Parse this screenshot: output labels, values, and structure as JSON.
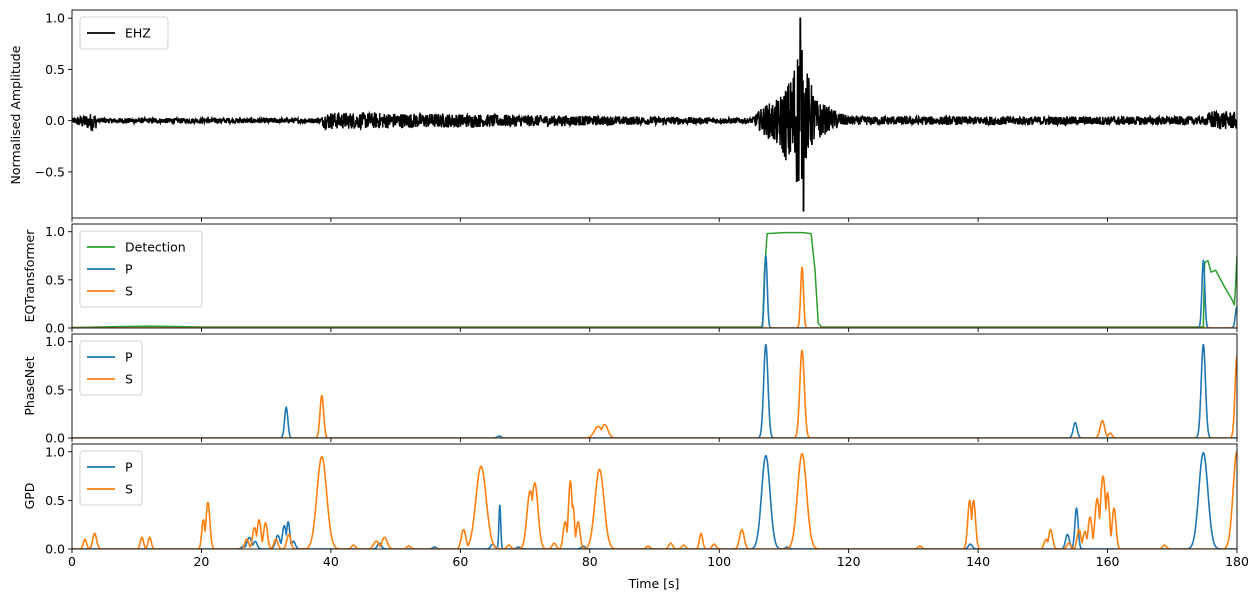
{
  "chart_data": [
    {
      "type": "line",
      "panel": "waveform",
      "ylabel": "Normalised Amplitude",
      "xlim": [
        0,
        180
      ],
      "ylim": [
        -0.95,
        1.08
      ],
      "yticks": [
        -0.5,
        0.0,
        0.5,
        1.0
      ],
      "ytick_labels": [
        "−0.5",
        "0.0",
        "0.5",
        "1.0"
      ],
      "legend": {
        "position": "top-left",
        "entries": [
          "EHZ"
        ]
      },
      "series": [
        {
          "name": "EHZ",
          "color": "#000000",
          "envelope": {
            "t": [
              0,
              3.5,
              4,
              38.5,
              39,
              105,
              107,
              109,
              111,
              112.5,
              113,
              113.8,
              115,
              117,
              120,
              175,
              176,
              180
            ],
            "upper": [
              0.03,
              0.1,
              0.03,
              0.03,
              0.1,
              0.03,
              0.18,
              0.25,
              0.5,
              1.0,
              0.7,
              0.52,
              0.25,
              0.15,
              0.05,
              0.05,
              0.12,
              0.1
            ],
            "lower": [
              -0.03,
              -0.13,
              -0.03,
              -0.03,
              -0.1,
              -0.03,
              -0.17,
              -0.3,
              -0.55,
              -0.88,
              -0.6,
              -0.4,
              -0.25,
              -0.12,
              -0.05,
              -0.05,
              -0.1,
              -0.1
            ]
          }
        }
      ]
    },
    {
      "type": "line",
      "panel": "eqtransformer",
      "ylabel": "EQTransformer",
      "xlim": [
        0,
        180
      ],
      "ylim": [
        0,
        1.08
      ],
      "yticks": [
        0.0,
        0.5,
        1.0
      ],
      "ytick_labels": [
        "0.0",
        "0.5",
        "1.0"
      ],
      "legend": {
        "position": "top-left",
        "entries": [
          "Detection",
          "P",
          "S"
        ]
      },
      "series": [
        {
          "name": "Detection",
          "color": "#2ca02c",
          "points": [
            [
              0,
              0.005
            ],
            [
              8,
              0.015
            ],
            [
              12,
              0.02
            ],
            [
              20,
              0.01
            ],
            [
              106.7,
              0.01
            ],
            [
              107.0,
              0.6
            ],
            [
              107.4,
              0.98
            ],
            [
              110,
              0.99
            ],
            [
              113,
              0.99
            ],
            [
              114.2,
              0.98
            ],
            [
              114.8,
              0.6
            ],
            [
              115.3,
              0.05
            ],
            [
              115.8,
              0.01
            ],
            [
              174.8,
              0.01
            ],
            [
              175.0,
              0.68
            ],
            [
              175.5,
              0.7
            ],
            [
              176,
              0.58
            ],
            [
              176.7,
              0.6
            ],
            [
              177.5,
              0.5
            ],
            [
              178.3,
              0.4
            ],
            [
              179.2,
              0.3
            ],
            [
              179.6,
              0.24
            ],
            [
              179.75,
              0.4
            ],
            [
              180,
              0.75
            ]
          ]
        },
        {
          "name": "P",
          "color": "#1f77b4",
          "peaks": [
            {
              "t": 107.2,
              "h": 0.75,
              "w": 0.22
            },
            {
              "t": 174.8,
              "h": 0.7,
              "w": 0.22
            },
            {
              "t": 180.0,
              "h": 0.22,
              "w": 0.25
            }
          ]
        },
        {
          "name": "S",
          "color": "#ff7f0e",
          "peaks": [
            {
              "t": 112.8,
              "h": 0.63,
              "w": 0.22
            }
          ]
        }
      ]
    },
    {
      "type": "line",
      "panel": "phasenet",
      "ylabel": "PhaseNet",
      "xlim": [
        0,
        180
      ],
      "ylim": [
        0,
        1.08
      ],
      "yticks": [
        0.0,
        0.5,
        1.0
      ],
      "ytick_labels": [
        "0.0",
        "0.5",
        "1.0"
      ],
      "legend": {
        "position": "top-left",
        "entries": [
          "P",
          "S"
        ]
      },
      "series": [
        {
          "name": "P",
          "color": "#1f77b4",
          "peaks": [
            {
              "t": 33.1,
              "h": 0.32,
              "w": 0.25
            },
            {
              "t": 66.0,
              "h": 0.02,
              "w": 0.3
            },
            {
              "t": 107.2,
              "h": 0.97,
              "w": 0.33
            },
            {
              "t": 155.0,
              "h": 0.16,
              "w": 0.3
            },
            {
              "t": 174.8,
              "h": 0.97,
              "w": 0.33
            }
          ]
        },
        {
          "name": "S",
          "color": "#ff7f0e",
          "peaks": [
            {
              "t": 38.6,
              "h": 0.44,
              "w": 0.28
            },
            {
              "t": 81.3,
              "h": 0.12,
              "w": 0.6
            },
            {
              "t": 82.3,
              "h": 0.14,
              "w": 0.5
            },
            {
              "t": 112.8,
              "h": 0.91,
              "w": 0.35
            },
            {
              "t": 159.2,
              "h": 0.18,
              "w": 0.35
            },
            {
              "t": 160.4,
              "h": 0.05,
              "w": 0.3
            },
            {
              "t": 180.0,
              "h": 0.85,
              "w": 0.3
            }
          ]
        }
      ]
    },
    {
      "type": "line",
      "panel": "gpd",
      "ylabel": "GPD",
      "xlabel": "Time [s]",
      "xlim": [
        0,
        180
      ],
      "ylim": [
        0,
        1.08
      ],
      "xticks": [
        0,
        20,
        40,
        60,
        80,
        100,
        120,
        140,
        160,
        180
      ],
      "xtick_labels": [
        "0",
        "20",
        "40",
        "60",
        "80",
        "100",
        "120",
        "140",
        "160",
        "180"
      ],
      "yticks": [
        0.0,
        0.5,
        1.0
      ],
      "ytick_labels": [
        "0.0",
        "0.5",
        "1.0"
      ],
      "legend": {
        "position": "top-left",
        "entries": [
          "P",
          "S"
        ]
      },
      "series": [
        {
          "name": "P",
          "color": "#1f77b4",
          "peaks": [
            {
              "t": 26.5,
              "h": 0.03,
              "w": 0.3
            },
            {
              "t": 27.4,
              "h": 0.12,
              "w": 0.35
            },
            {
              "t": 28.3,
              "h": 0.08,
              "w": 0.3
            },
            {
              "t": 31.8,
              "h": 0.14,
              "w": 0.35
            },
            {
              "t": 32.8,
              "h": 0.24,
              "w": 0.3
            },
            {
              "t": 33.4,
              "h": 0.28,
              "w": 0.25
            },
            {
              "t": 34.2,
              "h": 0.08,
              "w": 0.3
            },
            {
              "t": 47.5,
              "h": 0.06,
              "w": 0.3
            },
            {
              "t": 56.0,
              "h": 0.02,
              "w": 0.3
            },
            {
              "t": 65.0,
              "h": 0.05,
              "w": 0.3
            },
            {
              "t": 66.1,
              "h": 0.45,
              "w": 0.14
            },
            {
              "t": 69.0,
              "h": 0.02,
              "w": 0.3
            },
            {
              "t": 79.0,
              "h": 0.03,
              "w": 0.3
            },
            {
              "t": 107.2,
              "h": 0.96,
              "w": 0.65
            },
            {
              "t": 110.5,
              "h": 0.02,
              "w": 0.3
            },
            {
              "t": 138.8,
              "h": 0.05,
              "w": 0.3
            },
            {
              "t": 153.8,
              "h": 0.15,
              "w": 0.3
            },
            {
              "t": 155.2,
              "h": 0.42,
              "w": 0.25
            },
            {
              "t": 174.8,
              "h": 0.99,
              "w": 0.7
            }
          ]
        },
        {
          "name": "S",
          "color": "#ff7f0e",
          "peaks": [
            {
              "t": 2.0,
              "h": 0.1,
              "w": 0.25
            },
            {
              "t": 3.5,
              "h": 0.16,
              "w": 0.3
            },
            {
              "t": 10.8,
              "h": 0.12,
              "w": 0.25
            },
            {
              "t": 12.0,
              "h": 0.12,
              "w": 0.25
            },
            {
              "t": 20.3,
              "h": 0.3,
              "w": 0.25
            },
            {
              "t": 21.0,
              "h": 0.48,
              "w": 0.3
            },
            {
              "t": 27.0,
              "h": 0.1,
              "w": 0.3
            },
            {
              "t": 28.2,
              "h": 0.22,
              "w": 0.3
            },
            {
              "t": 28.9,
              "h": 0.3,
              "w": 0.3
            },
            {
              "t": 29.9,
              "h": 0.27,
              "w": 0.3
            },
            {
              "t": 31.5,
              "h": 0.1,
              "w": 0.3
            },
            {
              "t": 33.5,
              "h": 0.15,
              "w": 0.3
            },
            {
              "t": 38.6,
              "h": 0.95,
              "w": 0.75
            },
            {
              "t": 43.5,
              "h": 0.04,
              "w": 0.3
            },
            {
              "t": 47.0,
              "h": 0.08,
              "w": 0.4
            },
            {
              "t": 48.3,
              "h": 0.12,
              "w": 0.4
            },
            {
              "t": 52.0,
              "h": 0.03,
              "w": 0.3
            },
            {
              "t": 60.5,
              "h": 0.2,
              "w": 0.35
            },
            {
              "t": 63.2,
              "h": 0.85,
              "w": 0.8
            },
            {
              "t": 67.5,
              "h": 0.04,
              "w": 0.3
            },
            {
              "t": 70.8,
              "h": 0.6,
              "w": 0.5
            },
            {
              "t": 71.5,
              "h": 0.68,
              "w": 0.5
            },
            {
              "t": 74.5,
              "h": 0.06,
              "w": 0.3
            },
            {
              "t": 76.2,
              "h": 0.28,
              "w": 0.3
            },
            {
              "t": 77.0,
              "h": 0.7,
              "w": 0.3
            },
            {
              "t": 77.4,
              "h": 0.45,
              "w": 0.25
            },
            {
              "t": 78.2,
              "h": 0.28,
              "w": 0.3
            },
            {
              "t": 81.5,
              "h": 0.82,
              "w": 0.7
            },
            {
              "t": 89.0,
              "h": 0.03,
              "w": 0.3
            },
            {
              "t": 92.5,
              "h": 0.06,
              "w": 0.3
            },
            {
              "t": 94.5,
              "h": 0.04,
              "w": 0.3
            },
            {
              "t": 97.2,
              "h": 0.16,
              "w": 0.25
            },
            {
              "t": 99.2,
              "h": 0.05,
              "w": 0.3
            },
            {
              "t": 103.5,
              "h": 0.2,
              "w": 0.35
            },
            {
              "t": 112.8,
              "h": 0.98,
              "w": 0.7
            },
            {
              "t": 131.0,
              "h": 0.03,
              "w": 0.3
            },
            {
              "t": 138.7,
              "h": 0.5,
              "w": 0.3
            },
            {
              "t": 139.3,
              "h": 0.5,
              "w": 0.3
            },
            {
              "t": 150.5,
              "h": 0.1,
              "w": 0.3
            },
            {
              "t": 151.2,
              "h": 0.2,
              "w": 0.3
            },
            {
              "t": 154.0,
              "h": 0.06,
              "w": 0.3
            },
            {
              "t": 155.6,
              "h": 0.2,
              "w": 0.3
            },
            {
              "t": 156.5,
              "h": 0.18,
              "w": 0.3
            },
            {
              "t": 157.3,
              "h": 0.33,
              "w": 0.3
            },
            {
              "t": 158.4,
              "h": 0.52,
              "w": 0.35
            },
            {
              "t": 159.3,
              "h": 0.75,
              "w": 0.4
            },
            {
              "t": 160.0,
              "h": 0.58,
              "w": 0.3
            },
            {
              "t": 161.0,
              "h": 0.42,
              "w": 0.3
            },
            {
              "t": 168.8,
              "h": 0.04,
              "w": 0.3
            },
            {
              "t": 180.0,
              "h": 1.0,
              "w": 0.6
            }
          ]
        }
      ]
    }
  ]
}
